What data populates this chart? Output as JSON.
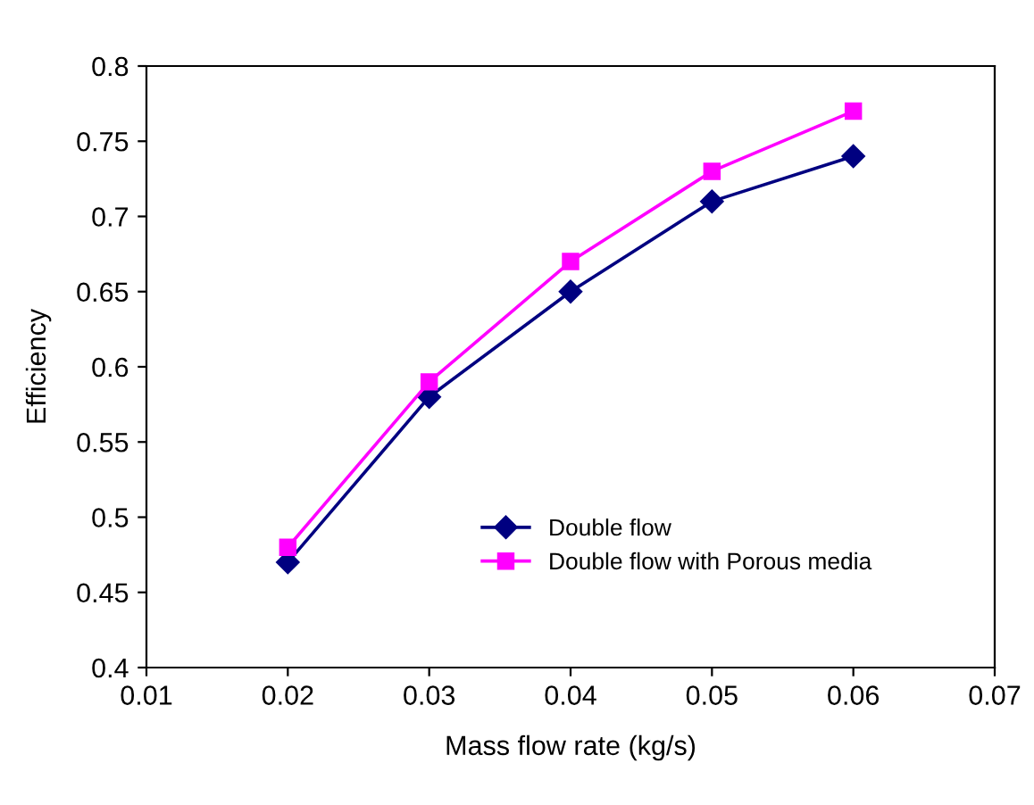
{
  "chart_data": {
    "type": "line",
    "xlabel": "Mass flow rate (kg/s)",
    "ylabel": "Efficiency",
    "x": [
      0.02,
      0.03,
      0.04,
      0.05,
      0.06
    ],
    "series": [
      {
        "name": "Double flow",
        "color": "#000080",
        "values": [
          0.47,
          0.58,
          0.65,
          0.71,
          0.74
        ],
        "marker": "diamond"
      },
      {
        "name": "Double flow with Porous media",
        "color": "#ff00ff",
        "values": [
          0.48,
          0.59,
          0.67,
          0.73,
          0.77
        ],
        "marker": "square"
      }
    ],
    "xlim": [
      0.01,
      0.07
    ],
    "xticks": [
      0.01,
      0.02,
      0.03,
      0.04,
      0.05,
      0.06,
      0.07
    ],
    "ylim": [
      0.4,
      0.8
    ],
    "yticks": [
      0.4,
      0.45,
      0.5,
      0.55,
      0.6,
      0.65,
      0.7,
      0.75,
      0.8
    ],
    "grid": false,
    "legend": "bottom right",
    "line_style": "solid"
  }
}
